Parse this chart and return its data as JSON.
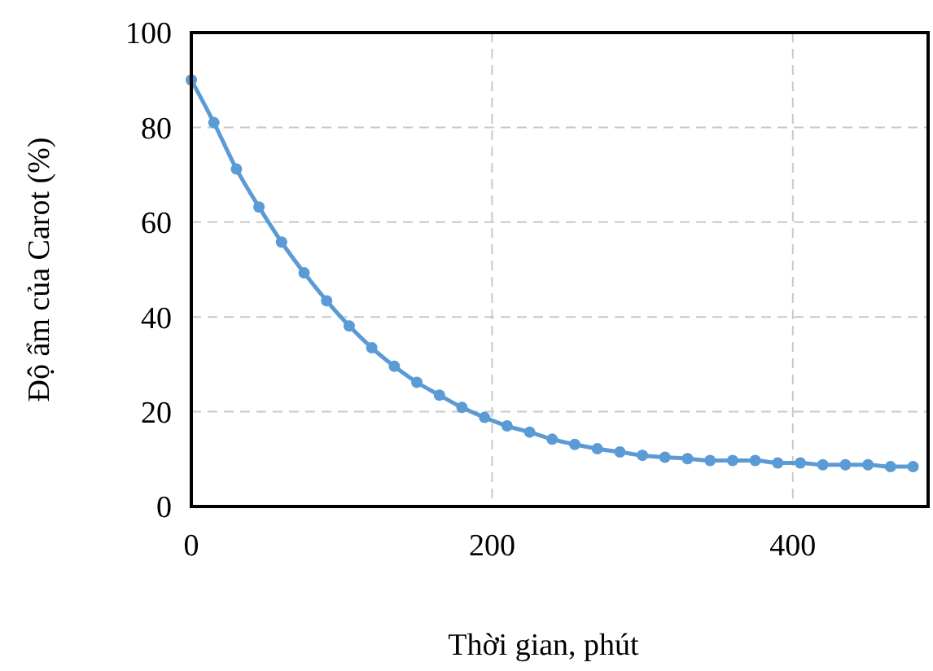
{
  "chart_data": {
    "type": "line",
    "xlabel": "Thời gian, phút",
    "ylabel": "Độ ẩm của Carot (%)",
    "x": [
      0,
      15,
      30,
      45,
      60,
      75,
      90,
      105,
      120,
      135,
      150,
      165,
      180,
      195,
      210,
      225,
      240,
      255,
      270,
      285,
      300,
      315,
      330,
      345,
      360,
      375,
      390,
      405,
      420,
      435,
      450,
      465,
      480
    ],
    "series": [
      {
        "color": "#5b9bd5",
        "values": [
          90,
          81,
          71.2,
          63.2,
          55.8,
          49.3,
          43.4,
          38.1,
          33.5,
          29.6,
          26.2,
          23.5,
          20.9,
          18.8,
          17.0,
          15.7,
          14.2,
          13.1,
          12.2,
          11.5,
          10.8,
          10.4,
          10.1,
          9.7,
          9.7,
          9.7,
          9.2,
          9.2,
          8.8,
          8.8,
          8.8,
          8.4,
          8.4
        ]
      }
    ],
    "xlim": [
      0,
      490
    ],
    "xticks": [
      0,
      200,
      400
    ],
    "ylim": [
      0,
      100
    ],
    "yticks": [
      0,
      20,
      40,
      60,
      80,
      100
    ],
    "grid": true,
    "marker": "circle",
    "line_style": "solid"
  }
}
